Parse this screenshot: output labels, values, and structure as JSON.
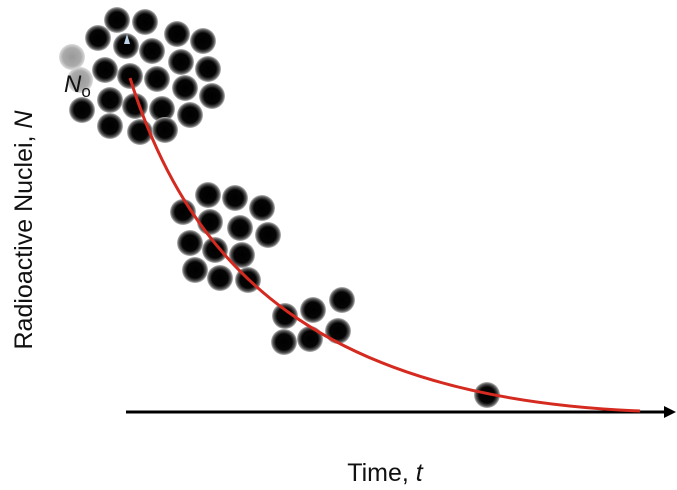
{
  "axes": {
    "y_label": {
      "text": "Radioactive Nuclei, ",
      "var": "N"
    },
    "x_label": {
      "text": "Time, ",
      "var": "t"
    }
  },
  "initial_label": {
    "symbol": "N",
    "subscript": "o"
  }
}
